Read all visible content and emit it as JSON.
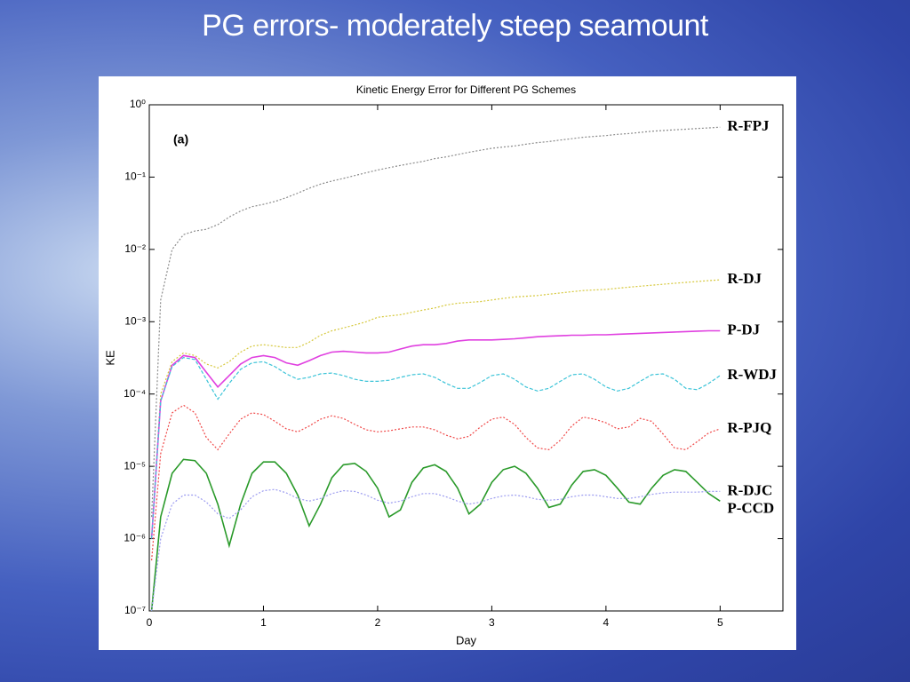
{
  "slide": {
    "title": "PG errors- moderately steep seamount"
  },
  "chart_data": {
    "type": "line",
    "title": "Kinetic Energy Error for Different PG Schemes",
    "x_label": "Day",
    "y_label": "KE",
    "annotation": "(a)",
    "yscale": "log",
    "xlim": [
      0,
      5.55
    ],
    "ylim": [
      1e-07,
      1
    ],
    "xticks": [
      0,
      1,
      2,
      3,
      4,
      5
    ],
    "yticks": [
      {
        "value": 1,
        "label": "10⁰"
      },
      {
        "value": 0.1,
        "label": "10⁻¹"
      },
      {
        "value": 0.01,
        "label": "10⁻²"
      },
      {
        "value": 0.001,
        "label": "10⁻³"
      },
      {
        "value": 0.0001,
        "label": "10⁻⁴"
      },
      {
        "value": 1e-05,
        "label": "10⁻⁵"
      },
      {
        "value": 1e-06,
        "label": "10⁻⁶"
      },
      {
        "value": 1e-07,
        "label": "10⁻⁷"
      }
    ],
    "grid": false,
    "x": [
      0.02,
      0.1,
      0.2,
      0.3,
      0.4,
      0.5,
      0.6,
      0.7,
      0.8,
      0.9,
      1.0,
      1.1,
      1.2,
      1.3,
      1.4,
      1.5,
      1.6,
      1.7,
      1.8,
      1.9,
      2.0,
      2.1,
      2.2,
      2.3,
      2.4,
      2.5,
      2.6,
      2.7,
      2.8,
      2.9,
      3.0,
      3.1,
      3.2,
      3.3,
      3.4,
      3.5,
      3.6,
      3.7,
      3.8,
      3.9,
      4.0,
      4.1,
      4.2,
      4.3,
      4.4,
      4.5,
      4.6,
      4.7,
      4.8,
      4.9,
      5.0
    ],
    "series": [
      {
        "name": "R-FPJ",
        "color": "#8c8c8c",
        "style": "dotted",
        "values": [
          2e-06,
          0.002,
          0.01,
          0.016,
          0.018,
          0.019,
          0.022,
          0.028,
          0.034,
          0.039,
          0.042,
          0.046,
          0.052,
          0.06,
          0.07,
          0.08,
          0.088,
          0.096,
          0.105,
          0.115,
          0.125,
          0.135,
          0.145,
          0.155,
          0.165,
          0.18,
          0.19,
          0.205,
          0.22,
          0.235,
          0.25,
          0.26,
          0.27,
          0.285,
          0.3,
          0.31,
          0.325,
          0.34,
          0.355,
          0.365,
          0.375,
          0.39,
          0.4,
          0.415,
          0.43,
          0.44,
          0.45,
          0.46,
          0.47,
          0.48,
          0.49
        ]
      },
      {
        "name": "R-DJ",
        "color": "#d6c83c",
        "style": "dotted",
        "values": [
          1e-06,
          0.0001,
          0.00028,
          0.00037,
          0.00034,
          0.00026,
          0.00023,
          0.00028,
          0.00038,
          0.00046,
          0.00048,
          0.00046,
          0.00044,
          0.00044,
          0.00052,
          0.00065,
          0.00075,
          0.00082,
          0.0009,
          0.001,
          0.00115,
          0.0012,
          0.00125,
          0.00135,
          0.00145,
          0.00155,
          0.0017,
          0.0018,
          0.00185,
          0.0019,
          0.002,
          0.0021,
          0.0022,
          0.00225,
          0.0023,
          0.0024,
          0.0025,
          0.0026,
          0.0027,
          0.00275,
          0.0028,
          0.0029,
          0.003,
          0.0031,
          0.0032,
          0.0033,
          0.0034,
          0.0035,
          0.0036,
          0.0037,
          0.0038
        ]
      },
      {
        "name": "P-DJ",
        "color": "#e040e0",
        "style": "solid",
        "values": [
          1e-06,
          8e-05,
          0.00025,
          0.00034,
          0.00032,
          0.0002,
          0.000125,
          0.00018,
          0.00026,
          0.00032,
          0.00034,
          0.00032,
          0.00027,
          0.00025,
          0.00029,
          0.00034,
          0.00038,
          0.00039,
          0.00038,
          0.00037,
          0.00037,
          0.00038,
          0.00042,
          0.00046,
          0.00048,
          0.00048,
          0.0005,
          0.00054,
          0.00056,
          0.00056,
          0.00056,
          0.00057,
          0.00058,
          0.0006,
          0.00062,
          0.00063,
          0.00064,
          0.00065,
          0.00065,
          0.00066,
          0.00066,
          0.00067,
          0.00068,
          0.00069,
          0.0007,
          0.00071,
          0.00072,
          0.00073,
          0.00074,
          0.00075,
          0.00075
        ]
      },
      {
        "name": "R-WDJ",
        "color": "#3cc4d8",
        "style": "dashed",
        "values": [
          1e-06,
          8e-05,
          0.00024,
          0.00032,
          0.0003,
          0.00016,
          8.5e-05,
          0.00014,
          0.00022,
          0.00027,
          0.00028,
          0.00024,
          0.00019,
          0.00016,
          0.00017,
          0.00019,
          0.000195,
          0.00018,
          0.00016,
          0.00015,
          0.00015,
          0.000155,
          0.00017,
          0.000185,
          0.00019,
          0.00017,
          0.00014,
          0.00012,
          0.00012,
          0.000145,
          0.00018,
          0.00019,
          0.00016,
          0.000125,
          0.00011,
          0.00012,
          0.00015,
          0.000185,
          0.00019,
          0.00016,
          0.000125,
          0.00011,
          0.00012,
          0.00015,
          0.000185,
          0.00019,
          0.00016,
          0.00012,
          0.000115,
          0.00014,
          0.00018
        ]
      },
      {
        "name": "R-PJQ",
        "color": "#f04848",
        "style": "dotted",
        "values": [
          5e-07,
          1.5e-05,
          5.5e-05,
          7e-05,
          5.5e-05,
          2.5e-05,
          1.7e-05,
          2.8e-05,
          4.5e-05,
          5.5e-05,
          5.2e-05,
          4.2e-05,
          3.3e-05,
          3e-05,
          3.6e-05,
          4.5e-05,
          5e-05,
          4.6e-05,
          3.8e-05,
          3.2e-05,
          3e-05,
          3.1e-05,
          3.3e-05,
          3.5e-05,
          3.5e-05,
          3.2e-05,
          2.7e-05,
          2.4e-05,
          2.6e-05,
          3.5e-05,
          4.5e-05,
          4.8e-05,
          3.8e-05,
          2.5e-05,
          1.8e-05,
          1.7e-05,
          2.3e-05,
          3.6e-05,
          4.8e-05,
          4.5e-05,
          4e-05,
          3.3e-05,
          3.5e-05,
          4.6e-05,
          4.2e-05,
          2.8e-05,
          1.8e-05,
          1.7e-05,
          2.2e-05,
          2.9e-05,
          3.3e-05
        ]
      },
      {
        "name": "P-CCD",
        "color": "#2a9a2a",
        "style": "solid",
        "values": [
          1e-07,
          2e-06,
          8e-06,
          1.25e-05,
          1.2e-05,
          8e-06,
          3e-06,
          8e-07,
          3e-06,
          8e-06,
          1.15e-05,
          1.15e-05,
          8e-06,
          4e-06,
          1.5e-06,
          3e-06,
          7e-06,
          1.05e-05,
          1.1e-05,
          8.5e-06,
          5e-06,
          2e-06,
          2.5e-06,
          6e-06,
          9.5e-06,
          1.05e-05,
          8.5e-06,
          5e-06,
          2.2e-06,
          3e-06,
          6e-06,
          9e-06,
          1e-05,
          8e-06,
          5e-06,
          2.7e-06,
          3e-06,
          5.5e-06,
          8.5e-06,
          9e-06,
          7.5e-06,
          5e-06,
          3.2e-06,
          3e-06,
          5e-06,
          7.5e-06,
          9e-06,
          8.5e-06,
          6e-06,
          4.2e-06,
          3.3e-06
        ]
      },
      {
        "name": "R-DJC",
        "color": "#9c9cf0",
        "style": "dotted",
        "values": [
          1e-07,
          1e-06,
          3e-06,
          4e-06,
          4e-06,
          3.2e-06,
          2.2e-06,
          1.9e-06,
          2.5e-06,
          3.8e-06,
          4.6e-06,
          4.8e-06,
          4.3e-06,
          3.6e-06,
          3.3e-06,
          3.6e-06,
          4.2e-06,
          4.6e-06,
          4.5e-06,
          4e-06,
          3.4e-06,
          3.1e-06,
          3.3e-06,
          3.8e-06,
          4.2e-06,
          4.2e-06,
          3.8e-06,
          3.3e-06,
          3e-06,
          3.2e-06,
          3.6e-06,
          3.9e-06,
          4e-06,
          3.8e-06,
          3.5e-06,
          3.4e-06,
          3.5e-06,
          3.8e-06,
          4e-06,
          4e-06,
          3.8e-06,
          3.6e-06,
          3.6e-06,
          3.8e-06,
          4.1e-06,
          4.3e-06,
          4.4e-06,
          4.4e-06,
          4.4e-06,
          4.5e-06,
          4.5e-06
        ]
      }
    ]
  }
}
